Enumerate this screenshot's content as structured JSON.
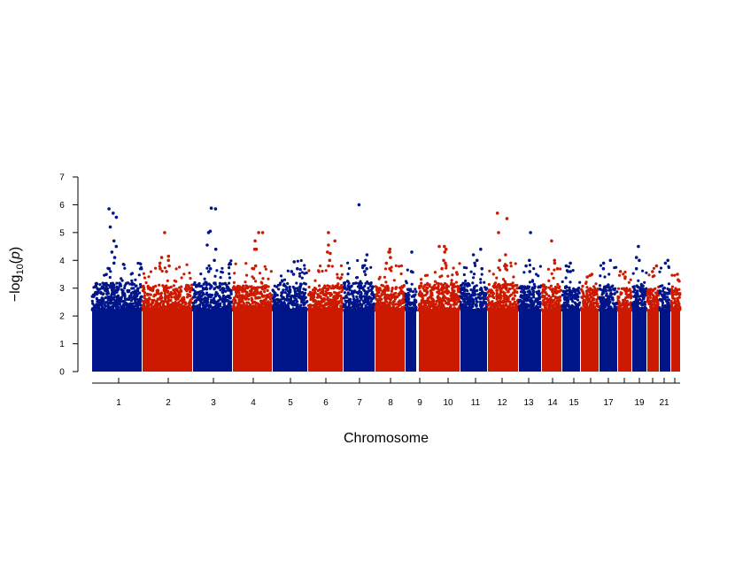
{
  "chart_data": {
    "type": "scatter",
    "title": "",
    "xlabel": "Chromosome",
    "ylabel": "−log10(p)",
    "ylabel_parts": {
      "prefix": "−log",
      "sub": "10",
      "open": "(",
      "var": "p",
      "close": ")"
    },
    "ylim": [
      0,
      7
    ],
    "yticks": [
      0,
      1,
      2,
      3,
      4,
      5,
      6,
      7
    ],
    "grid": false,
    "legend": "none",
    "colors": {
      "odd": "#00158a",
      "even": "#cc1a00"
    },
    "chromosomes": [
      {
        "chr": 1,
        "label": "1",
        "color": "#00158a",
        "max": 5.9,
        "cap": 3.2,
        "hits": [
          5.85,
          5.7,
          5.55,
          5.2,
          4.7,
          4.5,
          4.3,
          4.1,
          3.9,
          3.7
        ]
      },
      {
        "chr": 2,
        "label": "2",
        "color": "#cc1a00",
        "max": 5.0,
        "cap": 3.1,
        "hits": [
          5.0,
          4.15,
          4.0,
          3.9,
          3.8,
          3.7,
          4.1,
          3.6
        ]
      },
      {
        "chr": 3,
        "label": "3",
        "color": "#00158a",
        "max": 5.9,
        "cap": 3.2,
        "hits": [
          5.88,
          5.85,
          5.05,
          5.0,
          4.55,
          4.4,
          4.0,
          3.7,
          3.6
        ]
      },
      {
        "chr": 4,
        "label": "4",
        "color": "#cc1a00",
        "max": 5.0,
        "cap": 3.1,
        "hits": [
          5.0,
          5.0,
          4.7,
          4.4,
          4.4,
          3.8,
          3.7
        ]
      },
      {
        "chr": 5,
        "label": "5",
        "color": "#00158a",
        "max": 4.0,
        "cap": 3.2,
        "hits": [
          3.95,
          3.7,
          3.6,
          3.5
        ]
      },
      {
        "chr": 6,
        "label": "6",
        "color": "#cc1a00",
        "max": 5.0,
        "cap": 3.1,
        "hits": [
          5.0,
          4.7,
          4.55,
          4.3,
          4.25,
          4.0,
          3.8
        ]
      },
      {
        "chr": 7,
        "label": "7",
        "color": "#00158a",
        "max": 6.0,
        "cap": 3.2,
        "hits": [
          6.0,
          4.2,
          4.0,
          3.8,
          3.7,
          3.6
        ]
      },
      {
        "chr": 8,
        "label": "8",
        "color": "#cc1a00",
        "max": 4.4,
        "cap": 3.1,
        "hits": [
          4.4,
          4.3,
          4.3,
          4.1,
          3.9,
          3.7
        ]
      },
      {
        "chr": 9,
        "label": "9",
        "color": "#00158a",
        "max": 4.3,
        "cap": 3.0,
        "hits": [
          4.3,
          3.6
        ]
      },
      {
        "chr": 10,
        "label": "10",
        "color": "#cc1a00",
        "max": 4.5,
        "cap": 3.2,
        "hits": [
          4.5,
          4.5,
          4.4,
          4.3,
          4.0,
          3.9,
          3.7
        ]
      },
      {
        "chr": 11,
        "label": "11",
        "color": "#00158a",
        "max": 4.4,
        "cap": 3.2,
        "hits": [
          4.4,
          4.2,
          4.0,
          3.9,
          3.7
        ]
      },
      {
        "chr": 12,
        "label": "12",
        "color": "#cc1a00",
        "max": 5.7,
        "cap": 3.2,
        "hits": [
          5.7,
          5.5,
          5.0,
          4.2,
          4.0,
          3.8,
          3.7
        ]
      },
      {
        "chr": 13,
        "label": "13",
        "color": "#00158a",
        "max": 5.0,
        "cap": 3.1,
        "hits": [
          5.0,
          4.0,
          3.8,
          3.6
        ]
      },
      {
        "chr": 14,
        "label": "14",
        "color": "#cc1a00",
        "max": 4.7,
        "cap": 3.1,
        "hits": [
          4.7,
          4.0,
          3.9,
          3.7
        ]
      },
      {
        "chr": 15,
        "label": "15",
        "color": "#00158a",
        "max": 3.9,
        "cap": 3.1,
        "hits": [
          3.9,
          3.8,
          3.6
        ]
      },
      {
        "chr": 16,
        "label": "",
        "color": "#cc1a00",
        "max": 3.5,
        "cap": 3.0,
        "hits": [
          3.5,
          3.4
        ]
      },
      {
        "chr": 17,
        "label": "17",
        "color": "#00158a",
        "max": 4.0,
        "cap": 3.1,
        "hits": [
          4.0,
          3.9,
          3.7
        ]
      },
      {
        "chr": 18,
        "label": "",
        "color": "#cc1a00",
        "max": 3.6,
        "cap": 3.0,
        "hits": [
          3.6,
          3.4
        ]
      },
      {
        "chr": 19,
        "label": "19",
        "color": "#00158a",
        "max": 4.5,
        "cap": 3.1,
        "hits": [
          4.5,
          4.1,
          4.0,
          3.7
        ]
      },
      {
        "chr": 20,
        "label": "",
        "color": "#cc1a00",
        "max": 3.8,
        "cap": 3.0,
        "hits": [
          3.8,
          3.6
        ]
      },
      {
        "chr": 21,
        "label": "21",
        "color": "#00158a",
        "max": 4.0,
        "cap": 3.1,
        "hits": [
          4.0,
          3.9
        ]
      },
      {
        "chr": 22,
        "label": "",
        "color": "#cc1a00",
        "max": 3.5,
        "cap": 3.0,
        "hits": [
          3.5,
          3.3
        ]
      }
    ]
  }
}
